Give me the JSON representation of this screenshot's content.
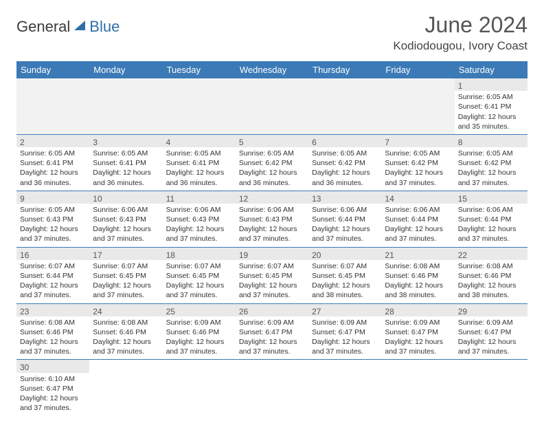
{
  "logo": {
    "general": "General",
    "blue": "Blue"
  },
  "title": "June 2024",
  "location": "Kodiodougou, Ivory Coast",
  "colors": {
    "header_bg": "#3b7ab6",
    "header_fg": "#ffffff",
    "daynum_bg": "#e9e9e9",
    "border": "#3b7ab6",
    "title_color": "#555555",
    "logo_blue": "#2f6fa8"
  },
  "daysOfWeek": [
    "Sunday",
    "Monday",
    "Tuesday",
    "Wednesday",
    "Thursday",
    "Friday",
    "Saturday"
  ],
  "weeks": [
    [
      null,
      null,
      null,
      null,
      null,
      null,
      {
        "n": "1",
        "sunrise": "6:05 AM",
        "sunset": "6:41 PM",
        "daylight": "12 hours and 35 minutes."
      }
    ],
    [
      {
        "n": "2",
        "sunrise": "6:05 AM",
        "sunset": "6:41 PM",
        "daylight": "12 hours and 36 minutes."
      },
      {
        "n": "3",
        "sunrise": "6:05 AM",
        "sunset": "6:41 PM",
        "daylight": "12 hours and 36 minutes."
      },
      {
        "n": "4",
        "sunrise": "6:05 AM",
        "sunset": "6:41 PM",
        "daylight": "12 hours and 36 minutes."
      },
      {
        "n": "5",
        "sunrise": "6:05 AM",
        "sunset": "6:42 PM",
        "daylight": "12 hours and 36 minutes."
      },
      {
        "n": "6",
        "sunrise": "6:05 AM",
        "sunset": "6:42 PM",
        "daylight": "12 hours and 36 minutes."
      },
      {
        "n": "7",
        "sunrise": "6:05 AM",
        "sunset": "6:42 PM",
        "daylight": "12 hours and 37 minutes."
      },
      {
        "n": "8",
        "sunrise": "6:05 AM",
        "sunset": "6:42 PM",
        "daylight": "12 hours and 37 minutes."
      }
    ],
    [
      {
        "n": "9",
        "sunrise": "6:05 AM",
        "sunset": "6:43 PM",
        "daylight": "12 hours and 37 minutes."
      },
      {
        "n": "10",
        "sunrise": "6:06 AM",
        "sunset": "6:43 PM",
        "daylight": "12 hours and 37 minutes."
      },
      {
        "n": "11",
        "sunrise": "6:06 AM",
        "sunset": "6:43 PM",
        "daylight": "12 hours and 37 minutes."
      },
      {
        "n": "12",
        "sunrise": "6:06 AM",
        "sunset": "6:43 PM",
        "daylight": "12 hours and 37 minutes."
      },
      {
        "n": "13",
        "sunrise": "6:06 AM",
        "sunset": "6:44 PM",
        "daylight": "12 hours and 37 minutes."
      },
      {
        "n": "14",
        "sunrise": "6:06 AM",
        "sunset": "6:44 PM",
        "daylight": "12 hours and 37 minutes."
      },
      {
        "n": "15",
        "sunrise": "6:06 AM",
        "sunset": "6:44 PM",
        "daylight": "12 hours and 37 minutes."
      }
    ],
    [
      {
        "n": "16",
        "sunrise": "6:07 AM",
        "sunset": "6:44 PM",
        "daylight": "12 hours and 37 minutes."
      },
      {
        "n": "17",
        "sunrise": "6:07 AM",
        "sunset": "6:45 PM",
        "daylight": "12 hours and 37 minutes."
      },
      {
        "n": "18",
        "sunrise": "6:07 AM",
        "sunset": "6:45 PM",
        "daylight": "12 hours and 37 minutes."
      },
      {
        "n": "19",
        "sunrise": "6:07 AM",
        "sunset": "6:45 PM",
        "daylight": "12 hours and 37 minutes."
      },
      {
        "n": "20",
        "sunrise": "6:07 AM",
        "sunset": "6:45 PM",
        "daylight": "12 hours and 38 minutes."
      },
      {
        "n": "21",
        "sunrise": "6:08 AM",
        "sunset": "6:46 PM",
        "daylight": "12 hours and 38 minutes."
      },
      {
        "n": "22",
        "sunrise": "6:08 AM",
        "sunset": "6:46 PM",
        "daylight": "12 hours and 38 minutes."
      }
    ],
    [
      {
        "n": "23",
        "sunrise": "6:08 AM",
        "sunset": "6:46 PM",
        "daylight": "12 hours and 37 minutes."
      },
      {
        "n": "24",
        "sunrise": "6:08 AM",
        "sunset": "6:46 PM",
        "daylight": "12 hours and 37 minutes."
      },
      {
        "n": "25",
        "sunrise": "6:09 AM",
        "sunset": "6:46 PM",
        "daylight": "12 hours and 37 minutes."
      },
      {
        "n": "26",
        "sunrise": "6:09 AM",
        "sunset": "6:47 PM",
        "daylight": "12 hours and 37 minutes."
      },
      {
        "n": "27",
        "sunrise": "6:09 AM",
        "sunset": "6:47 PM",
        "daylight": "12 hours and 37 minutes."
      },
      {
        "n": "28",
        "sunrise": "6:09 AM",
        "sunset": "6:47 PM",
        "daylight": "12 hours and 37 minutes."
      },
      {
        "n": "29",
        "sunrise": "6:09 AM",
        "sunset": "6:47 PM",
        "daylight": "12 hours and 37 minutes."
      }
    ],
    [
      {
        "n": "30",
        "sunrise": "6:10 AM",
        "sunset": "6:47 PM",
        "daylight": "12 hours and 37 minutes."
      },
      null,
      null,
      null,
      null,
      null,
      null
    ]
  ],
  "labels": {
    "sunrise": "Sunrise:",
    "sunset": "Sunset:",
    "daylight": "Daylight:"
  }
}
